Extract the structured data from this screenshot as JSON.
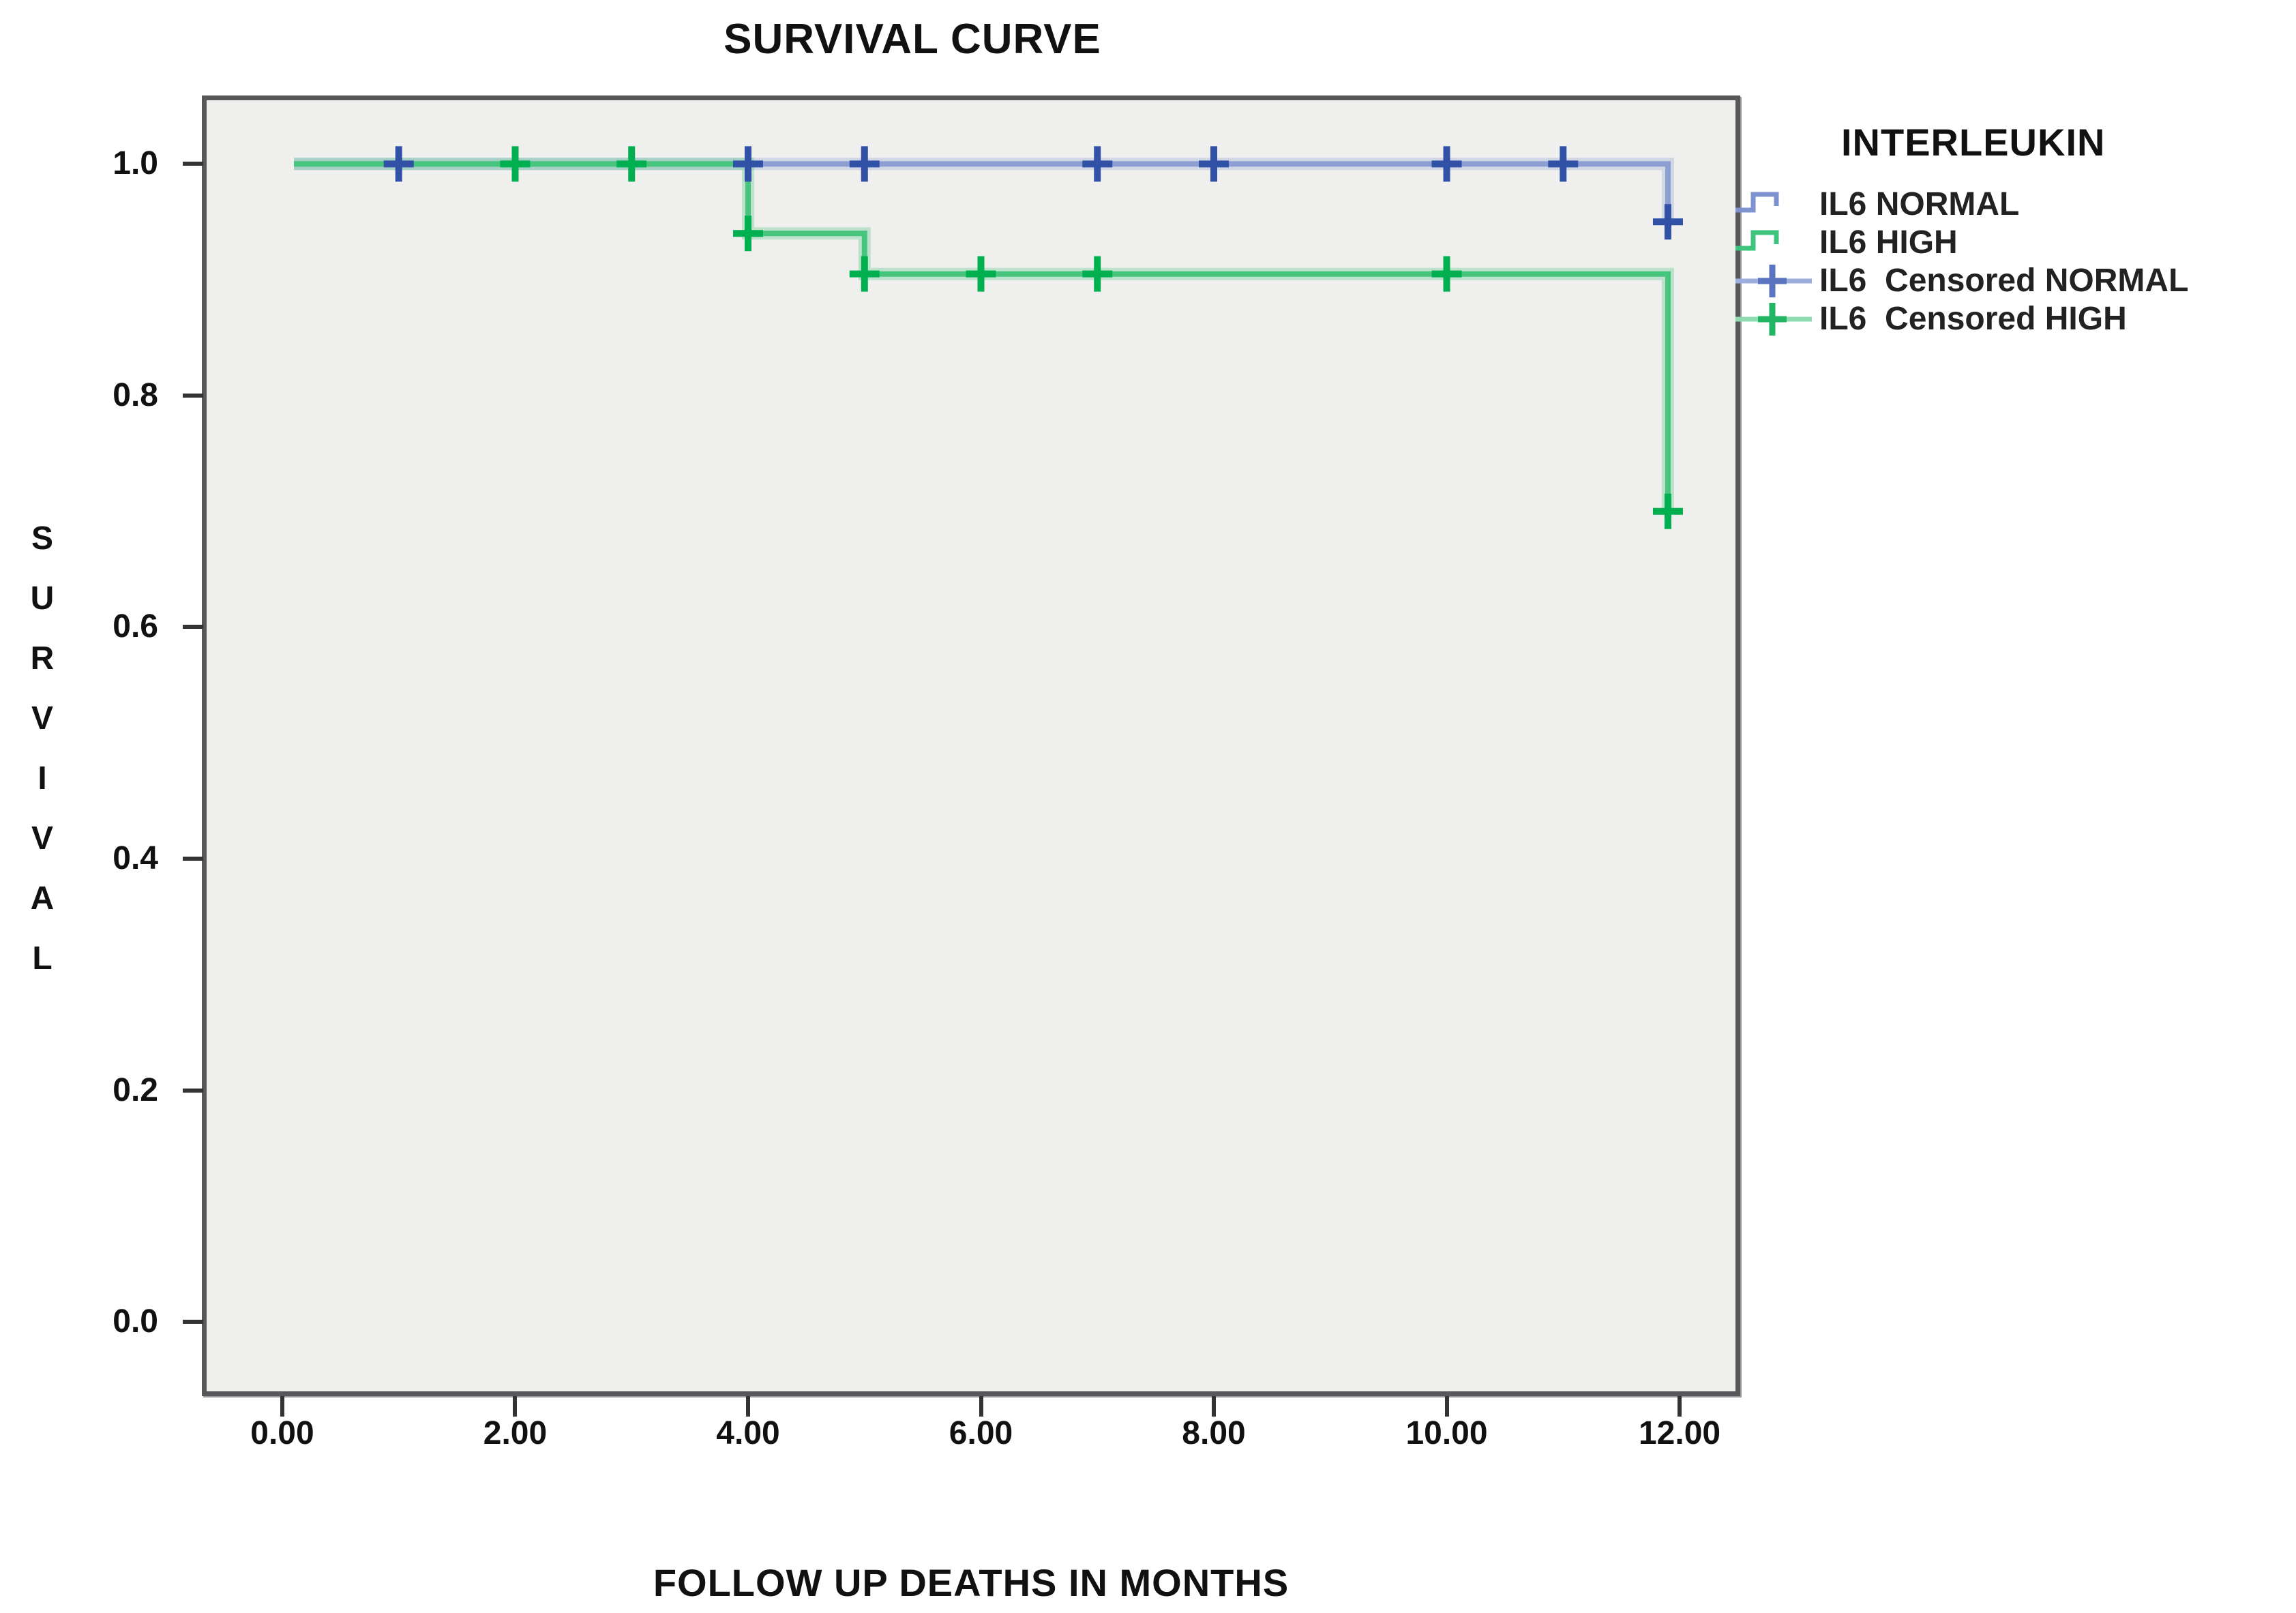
{
  "title": "SURVIVAL CURVE",
  "x_axis": {
    "title": "FOLLOW UP DEATHS IN MONTHS",
    "ticks": [
      {
        "v": 0,
        "label": "0.00"
      },
      {
        "v": 2,
        "label": "2.00"
      },
      {
        "v": 4,
        "label": "4.00"
      },
      {
        "v": 6,
        "label": "6.00"
      },
      {
        "v": 8,
        "label": "8.00"
      },
      {
        "v": 10,
        "label": "10.00"
      },
      {
        "v": 12,
        "label": "12.00"
      }
    ]
  },
  "y_axis": {
    "title": "SURVIVAL",
    "ticks": [
      {
        "v": 1.0,
        "label": "1.0"
      },
      {
        "v": 0.8,
        "label": "0.8"
      },
      {
        "v": 0.6,
        "label": "0.6"
      },
      {
        "v": 0.4,
        "label": "0.4"
      },
      {
        "v": 0.2,
        "label": "0.2"
      },
      {
        "v": 0.0,
        "label": "0.0"
      }
    ]
  },
  "legend": {
    "title": "INTERLEUKIN",
    "entries": [
      {
        "label": "IL6 NORMAL",
        "symbol": "step",
        "line_color": "#7f92d0",
        "marker_color": "#3051a6"
      },
      {
        "label": "IL6 HIGH",
        "symbol": "step",
        "line_color": "#3fc47e",
        "marker_color": "#00b050"
      },
      {
        "label": "IL6  Censored NORMAL",
        "symbol": "plus-line",
        "line_color": "#9caedd",
        "marker_color": "#5a74c0"
      },
      {
        "label": "IL6  Censored HIGH",
        "symbol": "plus-line",
        "line_color": "#8fdcb0",
        "marker_color": "#21b564"
      }
    ]
  },
  "colors": {
    "plot_background": "#efefee",
    "plot_border": "#58585a",
    "tick": "#333333",
    "text": "#1a1a1a",
    "normal_line": "#8c9ed2",
    "normal_marker": "#3051a6",
    "high_line": "#47c57f",
    "high_marker": "#00b050"
  },
  "chart_data": {
    "type": "line",
    "subtype": "kaplan-meier-step",
    "title": "SURVIVAL CURVE",
    "xlabel": "FOLLOW UP DEATHS IN MONTHS",
    "ylabel": "SURVIVAL",
    "xlim": [
      -0.65,
      12.48
    ],
    "ylim": [
      -0.06,
      1.055
    ],
    "x_ticks": [
      0,
      2,
      4,
      6,
      8,
      10,
      12
    ],
    "y_ticks": [
      1.0,
      0.8,
      0.6,
      0.4,
      0.2,
      0.0
    ],
    "grid": false,
    "legend_position": "right",
    "series": [
      {
        "name": "IL6 NORMAL",
        "line_color": "#8c9ed2",
        "marker_color": "#3051a6",
        "step_points": [
          [
            0.1,
            1.0
          ],
          [
            11.9,
            1.0
          ],
          [
            11.9,
            0.95
          ]
        ],
        "censored_points": [
          [
            1,
            1.0
          ],
          [
            4,
            1.0
          ],
          [
            5,
            1.0
          ],
          [
            7,
            1.0
          ],
          [
            8,
            1.0
          ],
          [
            10,
            1.0
          ],
          [
            11,
            1.0
          ],
          [
            11.9,
            0.95
          ]
        ]
      },
      {
        "name": "IL6 HIGH",
        "line_color": "#47c57f",
        "marker_color": "#00b050",
        "step_points": [
          [
            0.1,
            1.0
          ],
          [
            4,
            1.0
          ],
          [
            4,
            0.94
          ],
          [
            5,
            0.94
          ],
          [
            5,
            0.905
          ],
          [
            11.9,
            0.905
          ],
          [
            11.9,
            0.7
          ]
        ],
        "censored_points": [
          [
            2,
            1.0
          ],
          [
            3,
            1.0
          ],
          [
            4,
            0.94
          ],
          [
            5,
            0.905
          ],
          [
            6,
            0.905
          ],
          [
            7,
            0.905
          ],
          [
            10,
            0.905
          ],
          [
            11.9,
            0.7
          ]
        ]
      }
    ]
  }
}
